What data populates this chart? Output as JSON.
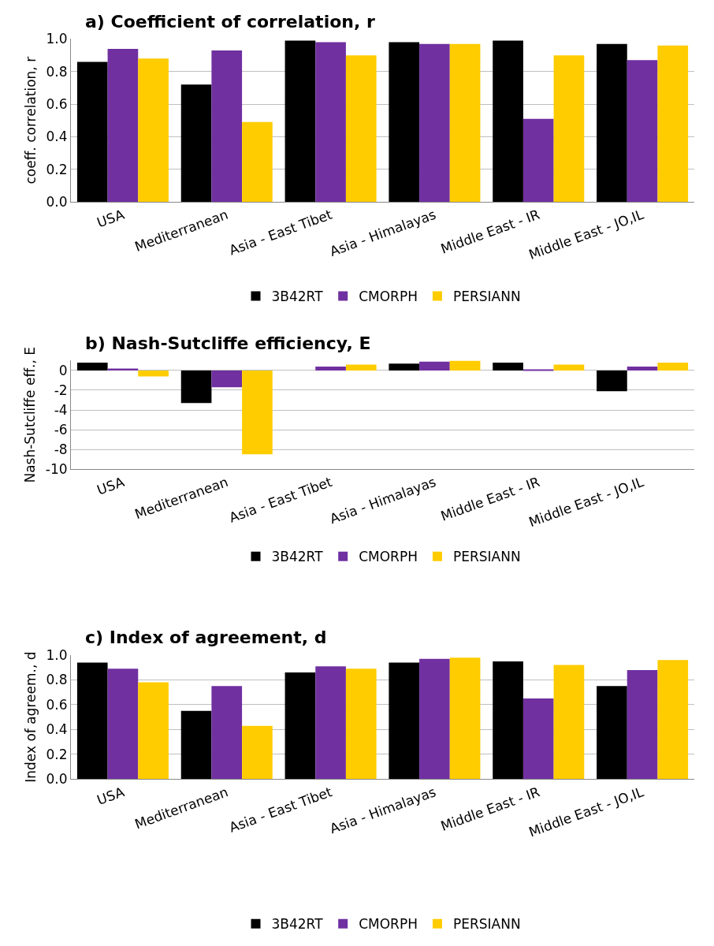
{
  "chart_data": [
    {
      "type": "bar",
      "title": "a) Coefficient of correlation, r",
      "ylabel": "coeff. correlation, r",
      "categories": [
        "USA",
        "Mediterranean",
        "Asia - East Tibet",
        "Asia - Himalayas",
        "Middle East - IR",
        "Middle East - JO,IL"
      ],
      "series": [
        {
          "name": "3B42RT",
          "color": "#000000",
          "values": [
            0.86,
            0.72,
            0.99,
            0.98,
            0.99,
            0.97
          ]
        },
        {
          "name": "CMORPH",
          "color": "#7030a0",
          "values": [
            0.94,
            0.93,
            0.98,
            0.97,
            0.51,
            0.87
          ]
        },
        {
          "name": "PERSIANN",
          "color": "#ffcc00",
          "values": [
            0.88,
            0.49,
            0.9,
            0.97,
            0.9,
            0.96
          ]
        }
      ],
      "ylim": [
        0,
        1
      ],
      "yticks": [
        {
          "value": 0,
          "label": "0.0"
        },
        {
          "value": 0.2,
          "label": "0.2"
        },
        {
          "value": 0.4,
          "label": "0.4"
        },
        {
          "value": 0.6,
          "label": "0.6"
        },
        {
          "value": 0.8,
          "label": "0.8"
        },
        {
          "value": 1,
          "label": "1.0"
        }
      ],
      "grid": "y",
      "legend": "bottom"
    },
    {
      "type": "bar",
      "title": "b) Nash-Sutcliffe efficiency, E",
      "ylabel": "Nash-Sutcliffe eff., E",
      "categories": [
        "USA",
        "Mediterranean",
        "Asia - East Tibet",
        "Asia - Himalayas",
        "Middle East - IR",
        "Middle East - JO,IL"
      ],
      "series": [
        {
          "name": "3B42RT",
          "color": "#000000",
          "values": [
            0.8,
            -3.3,
            0.0,
            0.7,
            0.8,
            -2.1
          ]
        },
        {
          "name": "CMORPH",
          "color": "#7030a0",
          "values": [
            0.2,
            -1.7,
            0.4,
            0.9,
            0.1,
            0.4
          ]
        },
        {
          "name": "PERSIANN",
          "color": "#ffcc00",
          "values": [
            -0.6,
            -8.5,
            0.6,
            1.0,
            0.6,
            0.8
          ]
        }
      ],
      "ylim": [
        -10,
        1
      ],
      "yticks": [
        -10,
        -8,
        -6,
        -4,
        -2,
        0
      ],
      "grid": "y",
      "legend": "bottom"
    },
    {
      "type": "bar",
      "title": "c) Index of agreement, d",
      "ylabel": "Index of agreem., d",
      "categories": [
        "USA",
        "Mediterranean",
        "Asia - East Tibet",
        "Asia - Himalayas",
        "Middle East - IR",
        "Middle East - JO,IL"
      ],
      "series": [
        {
          "name": "3B42RT",
          "color": "#000000",
          "values": [
            0.94,
            0.55,
            0.86,
            0.94,
            0.95,
            0.75
          ]
        },
        {
          "name": "CMORPH",
          "color": "#7030a0",
          "values": [
            0.89,
            0.75,
            0.91,
            0.97,
            0.65,
            0.88
          ]
        },
        {
          "name": "PERSIANN",
          "color": "#ffcc00",
          "values": [
            0.78,
            0.43,
            0.89,
            0.98,
            0.92,
            0.96
          ]
        }
      ],
      "ylim": [
        0,
        1
      ],
      "yticks": [
        {
          "value": 0,
          "label": "0.0"
        },
        {
          "value": 0.2,
          "label": "0.2"
        },
        {
          "value": 0.4,
          "label": "0.4"
        },
        {
          "value": 0.6,
          "label": "0.6"
        },
        {
          "value": 0.8,
          "label": "0.8"
        },
        {
          "value": 1,
          "label": "1.0"
        }
      ],
      "grid": "y",
      "legend": "bottom"
    }
  ]
}
